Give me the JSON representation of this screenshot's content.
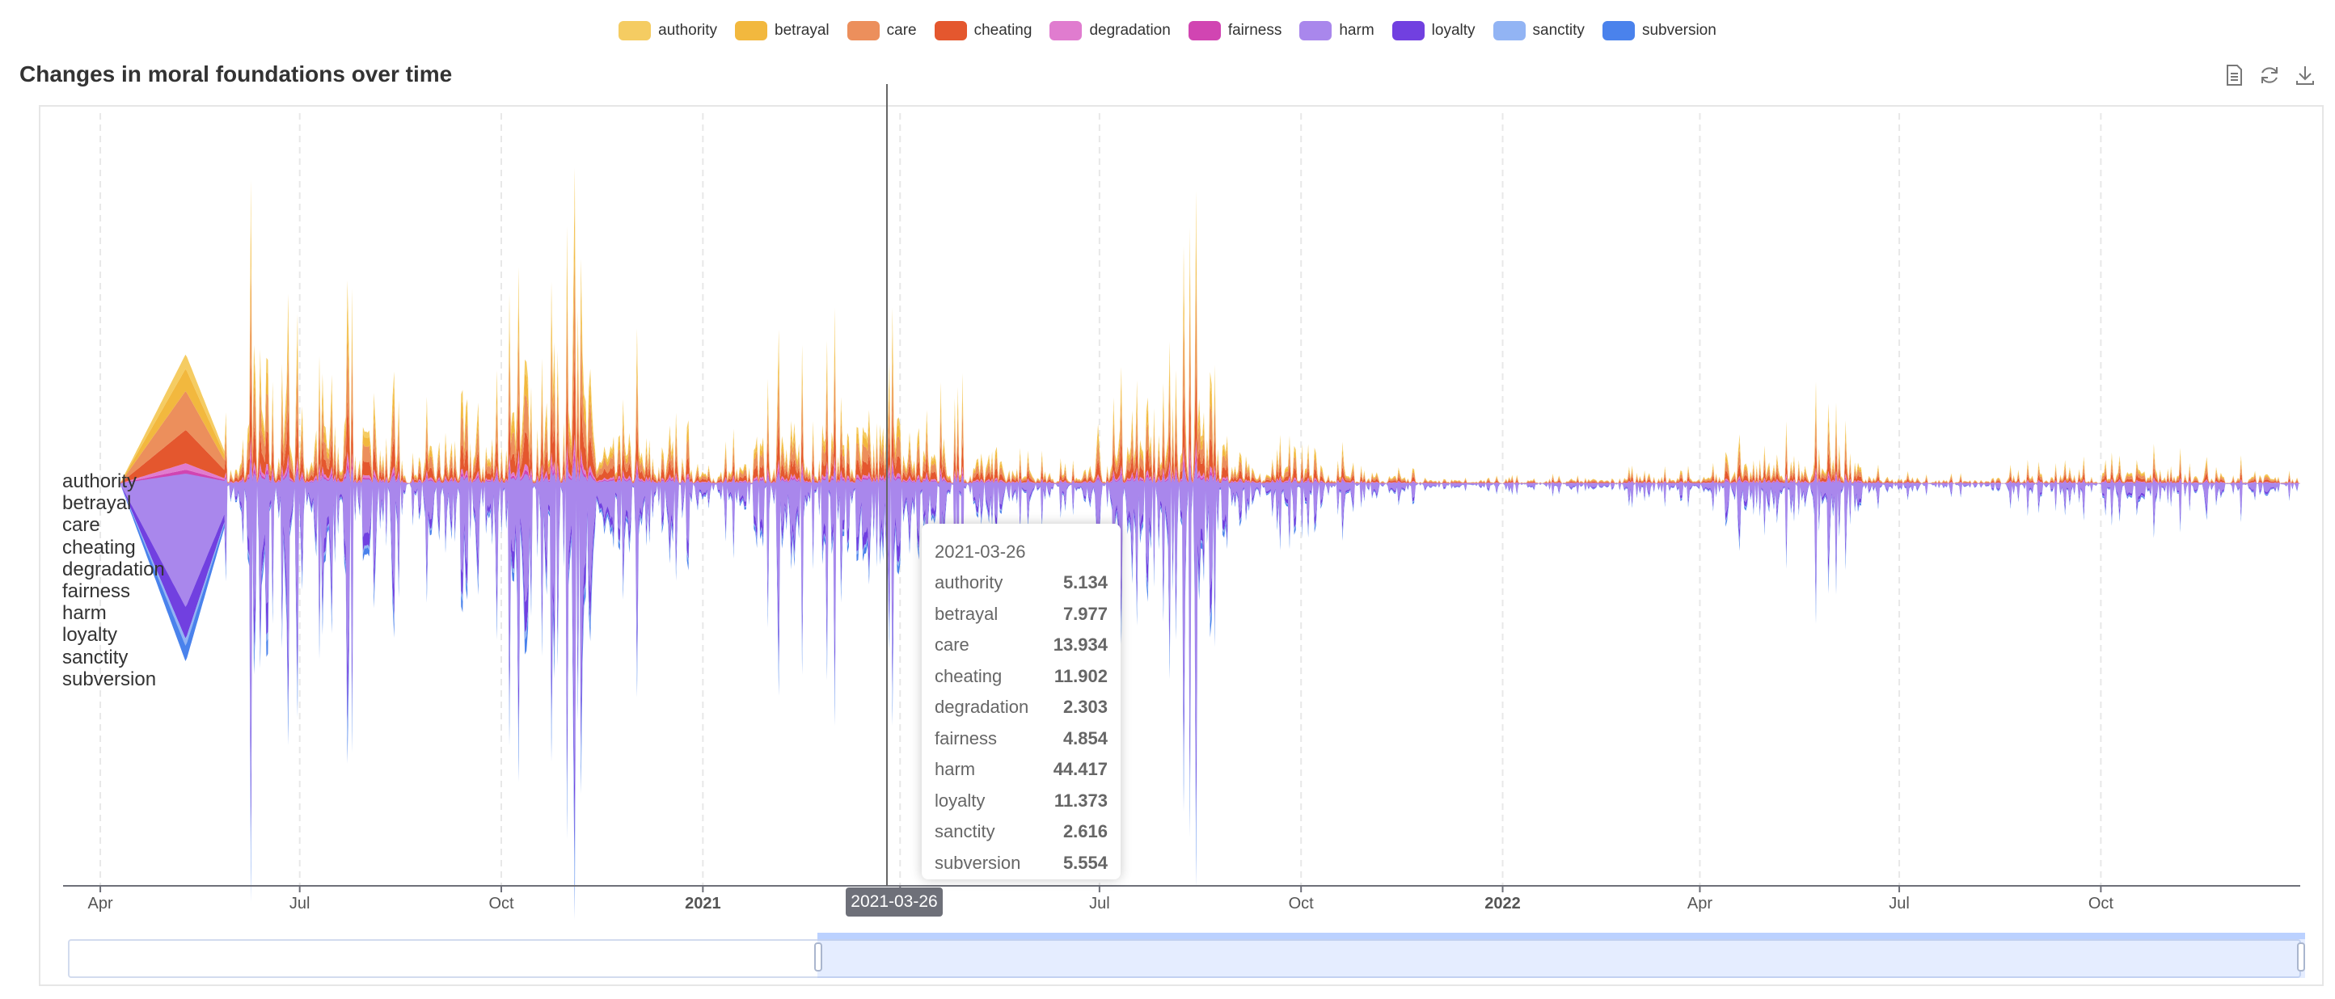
{
  "legend": [
    {
      "label": "authority",
      "color": "#f5cc62"
    },
    {
      "label": "betrayal",
      "color": "#f2b83e"
    },
    {
      "label": "care",
      "color": "#ec8f5c"
    },
    {
      "label": "cheating",
      "color": "#e4572e"
    },
    {
      "label": "degradation",
      "color": "#e07ccf"
    },
    {
      "label": "fairness",
      "color": "#d145b2"
    },
    {
      "label": "harm",
      "color": "#a987ec"
    },
    {
      "label": "loyalty",
      "color": "#7140e0"
    },
    {
      "label": "sanctity",
      "color": "#92b4f4"
    },
    {
      "label": "subversion",
      "color": "#4a82ec"
    }
  ],
  "title": "Changes in moral foundations over time",
  "toolbox": {
    "data_view_icon": "document-icon",
    "restore_icon": "refresh-icon",
    "save_icon": "download-icon"
  },
  "tooltip": {
    "date": "2021-03-26",
    "rows": [
      {
        "name": "authority",
        "value": "5.134"
      },
      {
        "name": "betrayal",
        "value": "7.977"
      },
      {
        "name": "care",
        "value": "13.934"
      },
      {
        "name": "cheating",
        "value": "11.902"
      },
      {
        "name": "degradation",
        "value": "2.303"
      },
      {
        "name": "fairness",
        "value": "4.854"
      },
      {
        "name": "harm",
        "value": "44.417"
      },
      {
        "name": "loyalty",
        "value": "11.373"
      },
      {
        "name": "sanctity",
        "value": "2.616"
      },
      {
        "name": "subversion",
        "value": "5.554"
      }
    ]
  },
  "axis_pointer_label": "2021-03-26",
  "chart_data": {
    "type": "area",
    "subtype": "themeRiver",
    "title": "Changes in moral foundations over time",
    "x_range": [
      "2020-03-15",
      "2022-12-31"
    ],
    "x_ticks": [
      {
        "label": "Apr",
        "date": "2020-04-01",
        "bold": false
      },
      {
        "label": "Jul",
        "date": "2020-07-01",
        "bold": false
      },
      {
        "label": "Oct",
        "date": "2020-10-01",
        "bold": false
      },
      {
        "label": "2021",
        "date": "2021-01-01",
        "bold": true
      },
      {
        "label": "Apr",
        "date": "2021-04-01",
        "bold": false
      },
      {
        "label": "Jul",
        "date": "2021-07-01",
        "bold": false
      },
      {
        "label": "Oct",
        "date": "2021-10-01",
        "bold": false
      },
      {
        "label": "2022",
        "date": "2022-01-01",
        "bold": true
      },
      {
        "label": "Apr",
        "date": "2022-04-01",
        "bold": false
      },
      {
        "label": "Jul",
        "date": "2022-07-01",
        "bold": false
      },
      {
        "label": "Oct",
        "date": "2022-10-01",
        "bold": false
      }
    ],
    "series_order": [
      "authority",
      "betrayal",
      "care",
      "cheating",
      "degradation",
      "fairness",
      "harm",
      "loyalty",
      "sanctity",
      "subversion"
    ],
    "grid": {
      "vertical_dashed": true
    },
    "legend_position": "top-center",
    "highlighted_date": "2021-03-26",
    "highlighted_values": {
      "authority": 5.134,
      "betrayal": 7.977,
      "care": 13.934,
      "cheating": 11.902,
      "degradation": 2.303,
      "fairness": 4.854,
      "harm": 44.417,
      "loyalty": 11.373,
      "sanctity": 2.616,
      "subversion": 5.554
    },
    "points": [
      {
        "date": "2020-04-10",
        "total": 0
      },
      {
        "date": "2020-05-10",
        "total": 150
      },
      {
        "date": "2020-05-28",
        "total": 35
      },
      {
        "date": "2020-06-03",
        "total": 30
      },
      {
        "date": "2020-06-10",
        "total": 210
      },
      {
        "date": "2020-06-25",
        "total": 170
      },
      {
        "date": "2020-07-03",
        "total": 110
      },
      {
        "date": "2020-07-10",
        "total": 200
      },
      {
        "date": "2020-07-25",
        "total": 90
      },
      {
        "date": "2020-08-10",
        "total": 75
      },
      {
        "date": "2020-08-20",
        "total": 10
      },
      {
        "date": "2020-09-01",
        "total": 60
      },
      {
        "date": "2020-09-15",
        "total": 130
      },
      {
        "date": "2020-10-01",
        "total": 90
      },
      {
        "date": "2020-10-15",
        "total": 140
      },
      {
        "date": "2020-10-25",
        "total": 190
      },
      {
        "date": "2020-11-03",
        "total": 240
      },
      {
        "date": "2020-11-20",
        "total": 60
      },
      {
        "date": "2020-12-05",
        "total": 80
      },
      {
        "date": "2020-12-20",
        "total": 40
      },
      {
        "date": "2021-01-05",
        "total": 20
      },
      {
        "date": "2021-01-20",
        "total": 30
      },
      {
        "date": "2021-02-05",
        "total": 95
      },
      {
        "date": "2021-02-20",
        "total": 70
      },
      {
        "date": "2021-03-05",
        "total": 85
      },
      {
        "date": "2021-03-26",
        "total": 110
      },
      {
        "date": "2021-04-10",
        "total": 120
      },
      {
        "date": "2021-04-25",
        "total": 60
      },
      {
        "date": "2021-05-10",
        "total": 50
      },
      {
        "date": "2021-05-25",
        "total": 20
      },
      {
        "date": "2021-06-10",
        "total": 15
      },
      {
        "date": "2021-06-25",
        "total": 20
      },
      {
        "date": "2021-07-10",
        "total": 50
      },
      {
        "date": "2021-07-25",
        "total": 120
      },
      {
        "date": "2021-08-10",
        "total": 160
      },
      {
        "date": "2021-08-25",
        "total": 100
      },
      {
        "date": "2021-09-10",
        "total": 15
      },
      {
        "date": "2021-10-01",
        "total": 30
      },
      {
        "date": "2021-10-20",
        "total": 20
      },
      {
        "date": "2021-11-10",
        "total": 15
      },
      {
        "date": "2021-12-01",
        "total": 5
      },
      {
        "date": "2022-01-01",
        "total": 4
      },
      {
        "date": "2022-02-01",
        "total": 5
      },
      {
        "date": "2022-03-01",
        "total": 10
      },
      {
        "date": "2022-04-01",
        "total": 8
      },
      {
        "date": "2022-05-01",
        "total": 35
      },
      {
        "date": "2022-05-20",
        "total": 50
      },
      {
        "date": "2022-06-01",
        "total": 60
      },
      {
        "date": "2022-06-20",
        "total": 10
      },
      {
        "date": "2022-07-10",
        "total": 6
      },
      {
        "date": "2022-08-01",
        "total": 5
      },
      {
        "date": "2022-09-01",
        "total": 12
      },
      {
        "date": "2022-10-01",
        "total": 14
      },
      {
        "date": "2022-11-01",
        "total": 20
      },
      {
        "date": "2022-12-01",
        "total": 15
      },
      {
        "date": "2022-12-31",
        "total": 10
      }
    ]
  },
  "data_zoom": {
    "start_date": "2021-03-26",
    "end_date": "2022-12-31",
    "start_percent": 33.4,
    "end_percent": 100
  }
}
